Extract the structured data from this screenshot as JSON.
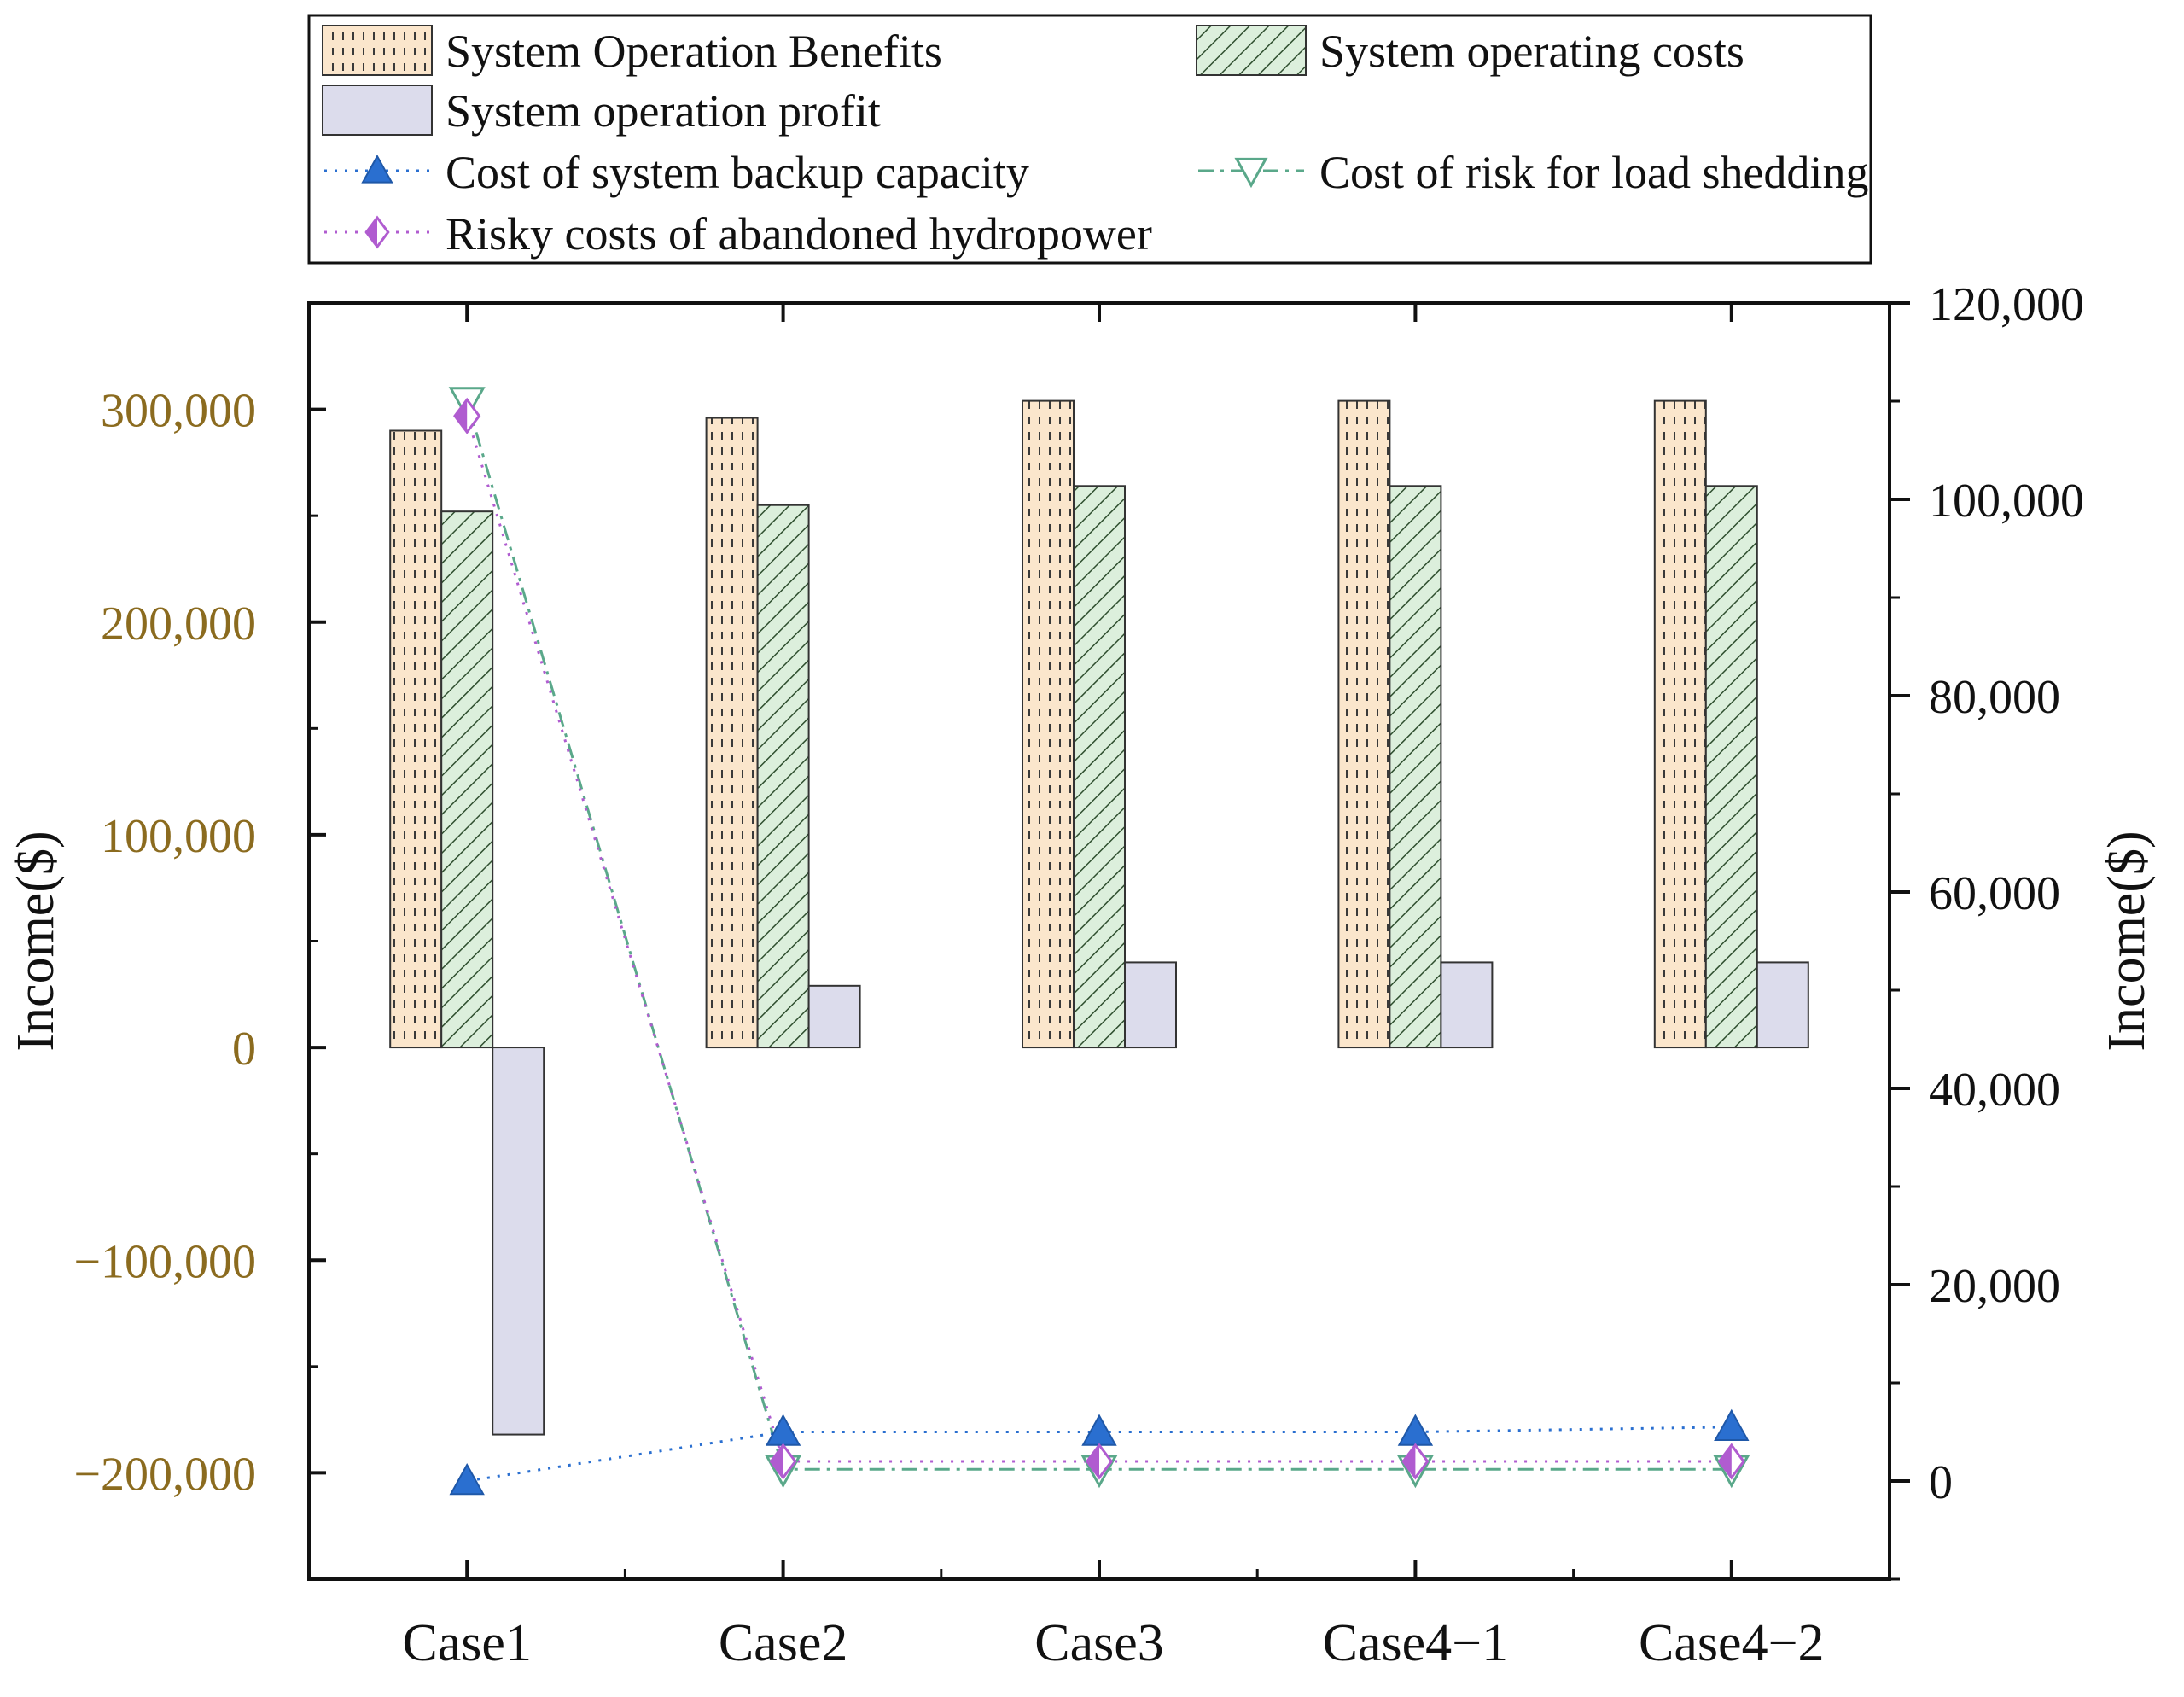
{
  "chart_data": {
    "type": "bar",
    "categories": [
      "Case1",
      "Case2",
      "Case3",
      "Case4−1",
      "Case4−2"
    ],
    "left_axis": {
      "label": "Income($)",
      "ylim": [
        -250000,
        350000
      ],
      "ticks": [
        -200000,
        -100000,
        0,
        100000,
        200000,
        300000
      ],
      "tick_labels": [
        "−200,000",
        "−100,000",
        "0",
        "100,000",
        "200,000",
        "300,000"
      ],
      "color": "#8b6b1f"
    },
    "right_axis": {
      "label": "Income($)",
      "ylim": [
        -10000,
        120000
      ],
      "ticks": [
        0,
        20000,
        40000,
        60000,
        80000,
        100000,
        120000
      ],
      "tick_labels": [
        "0",
        "20,000",
        "40,000",
        "60,000",
        "80,000",
        "100,000",
        "120,000"
      ]
    },
    "bar_series": [
      {
        "name": "System Operation Benefits",
        "values": [
          290000,
          296000,
          304000,
          304000,
          304000
        ],
        "fill": "#fbe6cc",
        "pattern": "dashes"
      },
      {
        "name": "System operating costs",
        "values": [
          252000,
          255000,
          264000,
          264000,
          264000
        ],
        "fill": "#dcefdc",
        "pattern": "diagonal"
      },
      {
        "name": "System operation profit",
        "values": [
          -182000,
          29000,
          40000,
          40000,
          40000
        ],
        "fill": "#dcdcec",
        "pattern": "none"
      }
    ],
    "line_series": [
      {
        "name": "Cost of system backup capacity",
        "values": [
          0,
          5000,
          5000,
          5000,
          5500
        ],
        "color": "#2a6fd0",
        "marker": "triangle-up",
        "dash": "dotted"
      },
      {
        "name": "Cost of risk for load shedding",
        "values": [
          110000,
          1200,
          1200,
          1200,
          1200
        ],
        "color": "#5aa88a",
        "marker": "triangle-down",
        "dash": "dashdot"
      },
      {
        "name": "Risky costs of abandoned hydropower",
        "values": [
          108500,
          2000,
          2000,
          2000,
          2000
        ],
        "color": "#b05cd0",
        "marker": "diamond-half",
        "dash": "dotted"
      }
    ],
    "legend": {
      "placement": "top",
      "entries": [
        "System Operation Benefits",
        "System operating costs",
        "System operation profit",
        "Cost of system backup capacity",
        "Cost of risk for load shedding",
        "Risky costs of abandoned hydropower"
      ]
    }
  }
}
